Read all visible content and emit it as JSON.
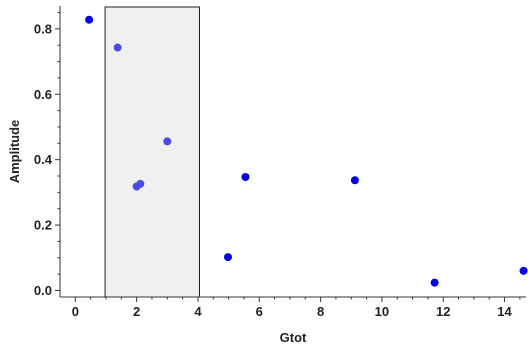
{
  "chart_data": {
    "type": "scatter",
    "title": "",
    "xlabel": "Gtot",
    "ylabel": "Amplitude",
    "xlim": [
      -0.5,
      14.7
    ],
    "ylim": [
      -0.02,
      0.87
    ],
    "x_ticks": [
      0,
      2,
      4,
      6,
      8,
      10,
      12,
      14
    ],
    "y_ticks": [
      0.0,
      0.2,
      0.4,
      0.6,
      0.8
    ],
    "x_tick_labels": [
      "0",
      "2",
      "4",
      "6",
      "8",
      "10",
      "12",
      "14"
    ],
    "y_tick_labels": [
      "0.0",
      "0.2",
      "0.4",
      "0.6",
      "0.8"
    ],
    "grid": false,
    "highlight_region": {
      "x_range": [
        0.97,
        4.05
      ],
      "fill": "#f0f0f0",
      "stroke": "#222222"
    },
    "series": [
      {
        "color": "#0000e0",
        "points": [
          {
            "x": 0.45,
            "y": 0.828
          },
          {
            "x": 4.98,
            "y": 0.102
          },
          {
            "x": 5.55,
            "y": 0.347
          },
          {
            "x": 9.12,
            "y": 0.337
          },
          {
            "x": 11.72,
            "y": 0.024
          },
          {
            "x": 14.62,
            "y": 0.06
          }
        ]
      },
      {
        "color": "#4a4ae8",
        "points": [
          {
            "x": 1.38,
            "y": 0.743
          },
          {
            "x": 2.0,
            "y": 0.318
          },
          {
            "x": 2.12,
            "y": 0.326
          },
          {
            "x": 3.0,
            "y": 0.456
          }
        ]
      }
    ]
  }
}
